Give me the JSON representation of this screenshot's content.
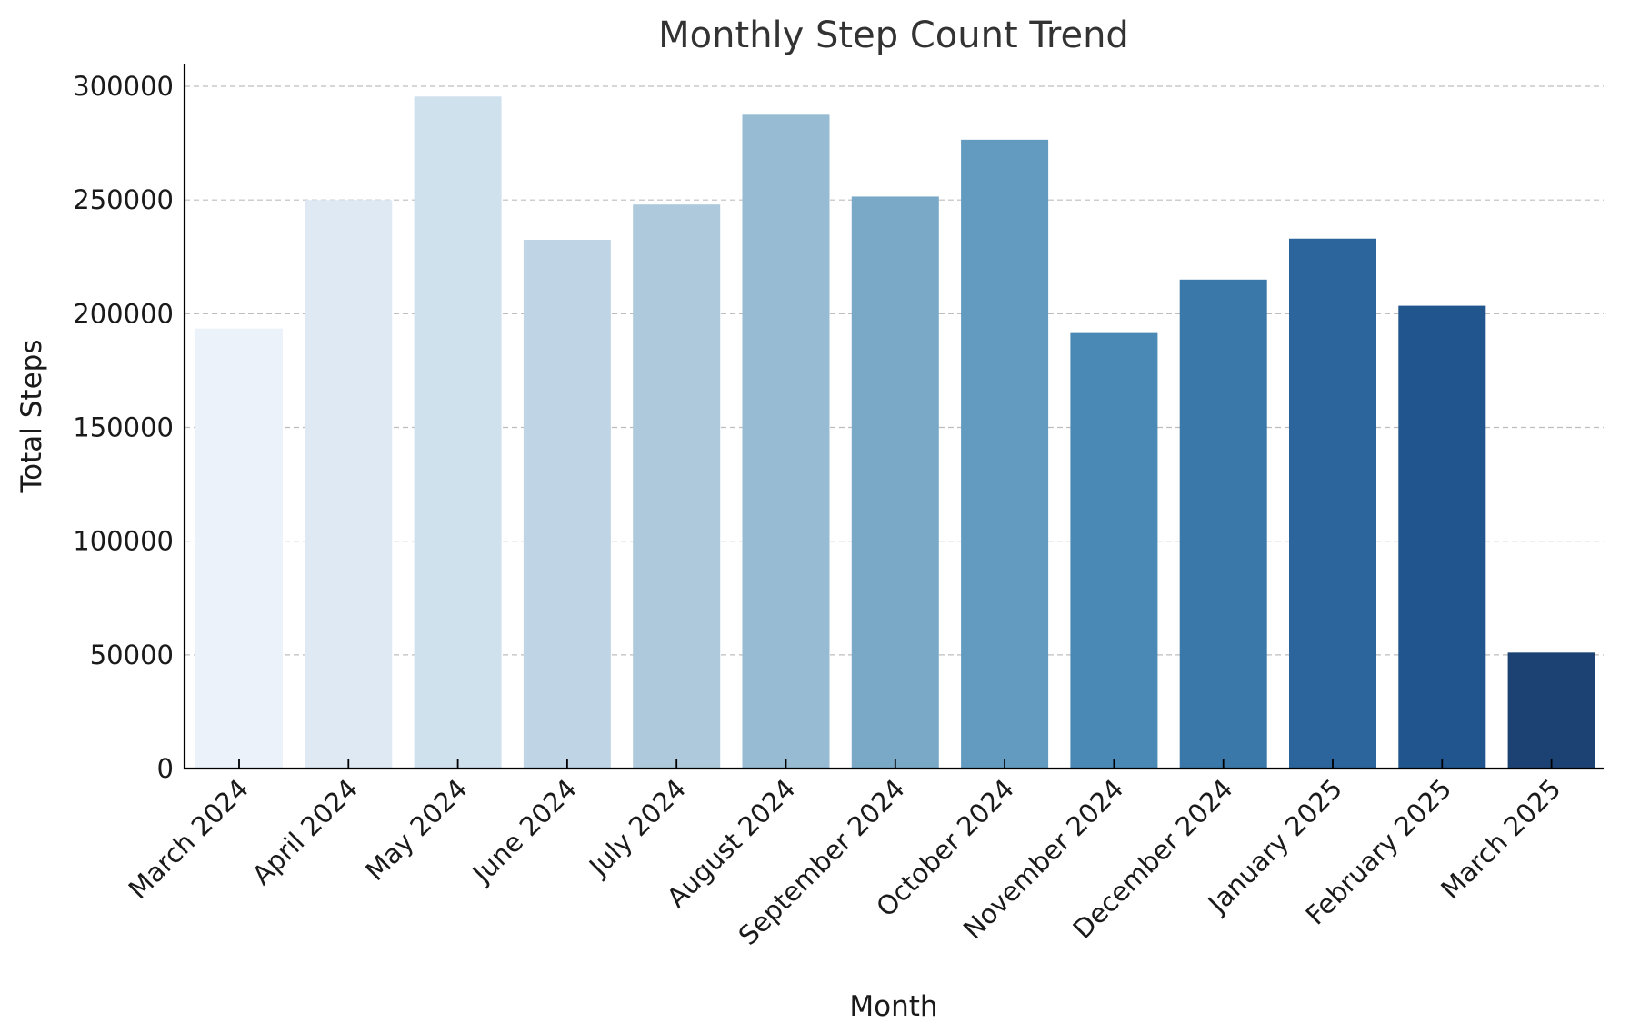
{
  "chart_data": {
    "type": "bar",
    "title": "Monthly Step Count Trend",
    "xlabel": "Month",
    "ylabel": "Total Steps",
    "categories": [
      "March 2024",
      "April 2024",
      "May 2024",
      "June 2024",
      "July 2024",
      "August 2024",
      "September 2024",
      "October 2024",
      "November 2024",
      "December 2024",
      "January 2025",
      "February 2025",
      "March 2025"
    ],
    "values": [
      193500,
      250000,
      295500,
      232500,
      248000,
      287500,
      251500,
      276500,
      191500,
      215000,
      233000,
      203500,
      51000
    ],
    "ylim": [
      0,
      310000
    ],
    "yticks": [
      0,
      50000,
      100000,
      150000,
      200000,
      250000,
      300000
    ],
    "ytick_labels": [
      "0",
      "50000",
      "100000",
      "150000",
      "200000",
      "250000",
      "300000"
    ],
    "grid": "y-dashed",
    "legend": "none",
    "colors": [
      "#ebf2f9",
      "#dee9f4",
      "#d0e1ee",
      "#bfd5e6",
      "#adc9db",
      "#96bbd3",
      "#7aa9c8",
      "#639bc0",
      "#4a88b5",
      "#3b78aa",
      "#2c659c",
      "#20558d",
      "#1b4272"
    ]
  }
}
